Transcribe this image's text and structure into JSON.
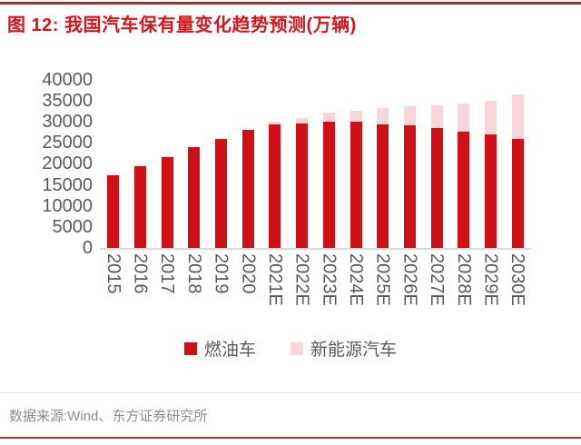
{
  "header": {
    "title": "图 12: 我国汽车保有量变化趋势预测(万辆)"
  },
  "colors": {
    "title_red": "#d4161c",
    "top_rule_red": "#9a332c",
    "bottom_rule_red": "#bf2c25",
    "fuel_bar_red": "#cf1016",
    "nev_bar_pink": "#f6d7d9",
    "axis_text_gray": "#595959",
    "source_text_gray": "#8c8c8c",
    "axis_line_gray": "#d9d9d9"
  },
  "chart_data": {
    "type": "bar",
    "stacked": true,
    "title": "图 12: 我国汽车保有量变化趋势预测(万辆)",
    "categories": [
      "2015",
      "2016",
      "2017",
      "2018",
      "2019",
      "2020",
      "2021E",
      "2022E",
      "2023E",
      "2024E",
      "2025E",
      "2026E",
      "2027E",
      "2028E",
      "2029E",
      "2030E"
    ],
    "series": [
      {
        "name": "燃油车",
        "key": "fuel",
        "color": "#cf1016",
        "values": [
          17200,
          19400,
          21700,
          24000,
          26000,
          28100,
          29400,
          29700,
          30100,
          30100,
          29500,
          29100,
          28500,
          27600,
          27000,
          26000
        ]
      },
      {
        "name": "新能源汽车",
        "key": "nev",
        "color": "#f6d7d9",
        "values": [
          0,
          0,
          0,
          0,
          0,
          0,
          600,
          1200,
          2100,
          2700,
          3800,
          4600,
          5500,
          6700,
          8000,
          10500
        ]
      }
    ],
    "xlabel": "",
    "ylabel": "",
    "ylim": [
      0,
      40000
    ],
    "yticks": [
      0,
      5000,
      10000,
      15000,
      20000,
      25000,
      30000,
      35000,
      40000
    ],
    "grid": false,
    "legend_position": "bottom"
  },
  "footer": {
    "source": "数据来源:Wind、东方证券研究所"
  }
}
